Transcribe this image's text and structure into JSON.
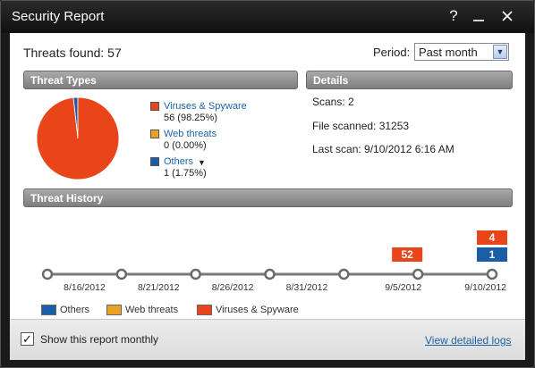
{
  "window": {
    "title": "Security Report",
    "help_icon": "question-mark-icon",
    "minimize_icon": "minimize-icon",
    "close_icon": "close-icon"
  },
  "summary": {
    "threats_found": "Threats found: 57"
  },
  "period": {
    "label": "Period:",
    "selected": "Past month"
  },
  "threat_types": {
    "header": "Threat Types",
    "items": [
      {
        "name": "Viruses & Spyware",
        "count": "56 (98.25%)",
        "color": "#e8461a",
        "value": 56,
        "percent": 98.25
      },
      {
        "name": "Web threats",
        "count": "0 (0.00%)",
        "color": "#e9a224",
        "value": 0,
        "percent": 0.0
      },
      {
        "name": "Others",
        "count": "1 (1.75%)",
        "color": "#1a5ea8",
        "value": 1,
        "percent": 1.75
      }
    ]
  },
  "details": {
    "header": "Details",
    "scans": "Scans: 2",
    "file_scanned": "File scanned: 31253",
    "last_scan": "Last scan: 9/10/2012 6:16 AM"
  },
  "threat_history": {
    "header": "Threat History",
    "dates": [
      "8/16/2012",
      "8/21/2012",
      "8/26/2012",
      "8/31/2012",
      "9/5/2012",
      "9/10/2012"
    ],
    "legend": [
      {
        "name": "Others",
        "color": "#1a5ea8"
      },
      {
        "name": "Web threats",
        "color": "#e9a224"
      },
      {
        "name": "Viruses & Spyware",
        "color": "#e8461a"
      }
    ]
  },
  "chart_data": [
    {
      "type": "pie",
      "categories": [
        "Viruses & Spyware",
        "Web threats",
        "Others"
      ],
      "values": [
        56,
        0,
        1
      ],
      "colors": [
        "#e8461a",
        "#e9a224",
        "#1a5ea8"
      ]
    },
    {
      "type": "bar",
      "categories": [
        "8/16/2012",
        "8/21/2012",
        "8/26/2012",
        "8/31/2012",
        "9/5/2012",
        "9/10/2012"
      ],
      "series": [
        {
          "name": "Others",
          "values": [
            0,
            0,
            0,
            0,
            0,
            1
          ]
        },
        {
          "name": "Web threats",
          "values": [
            0,
            0,
            0,
            0,
            0,
            0
          ]
        },
        {
          "name": "Viruses & Spyware",
          "values": [
            0,
            0,
            0,
            0,
            52,
            4
          ]
        }
      ]
    }
  ],
  "footer": {
    "monthly_label": "Show this report monthly",
    "monthly_checked": true,
    "detail_link": "View detailed logs"
  }
}
